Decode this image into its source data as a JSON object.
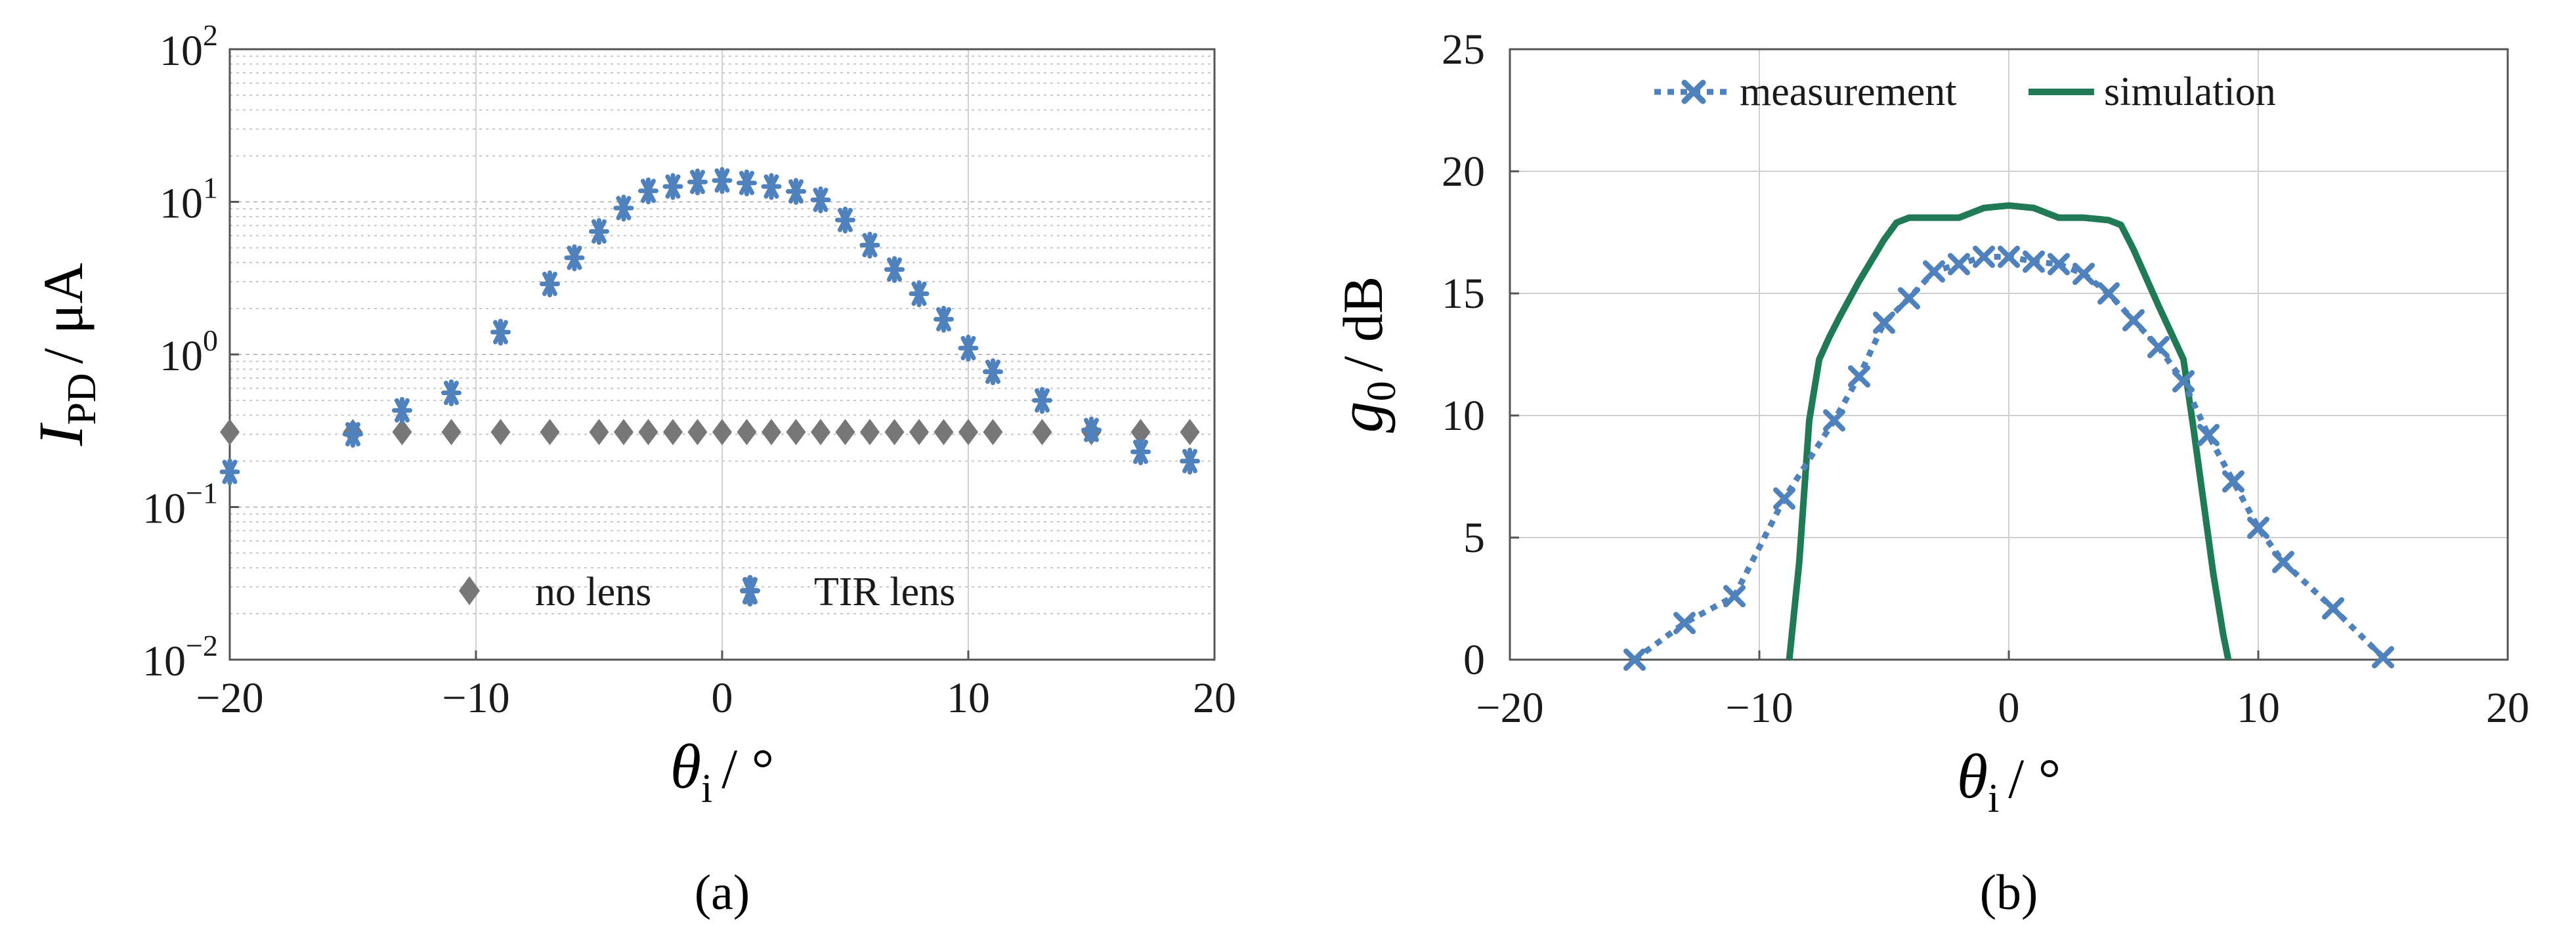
{
  "chart_data": [
    {
      "id": "a",
      "type": "scatter",
      "caption": "(a)",
      "x_label": {
        "symbol": "θ",
        "subscript": "i",
        "unit": "/ °"
      },
      "y_label": {
        "symbol": "I",
        "subscript": "PD",
        "unit": "/ μA"
      },
      "xlim": [
        -20,
        20
      ],
      "xticks": [
        -20,
        -10,
        0,
        10,
        20
      ],
      "ylim": [
        0.01,
        100
      ],
      "yscale": "log",
      "yticks": [
        {
          "value": 0.01,
          "base": "10",
          "exp": "-2"
        },
        {
          "value": 0.1,
          "base": "10",
          "exp": "-1"
        },
        {
          "value": 1,
          "base": "10",
          "exp": "0"
        },
        {
          "value": 10,
          "base": "10",
          "exp": "1"
        },
        {
          "value": 100,
          "base": "10",
          "exp": "2"
        }
      ],
      "grid": true,
      "legend_position": "bottom-center",
      "series": [
        {
          "name": "no lens",
          "marker": "diamond",
          "color": "#777777",
          "x": [
            -20,
            -15,
            -13,
            -11,
            -9,
            -7,
            -5,
            -4,
            -3,
            -2,
            -1,
            0,
            1,
            2,
            3,
            4,
            5,
            6,
            7,
            8,
            9,
            10,
            11,
            13,
            15,
            17,
            19
          ],
          "y": [
            0.31,
            0.31,
            0.31,
            0.31,
            0.31,
            0.31,
            0.31,
            0.31,
            0.31,
            0.31,
            0.31,
            0.31,
            0.31,
            0.31,
            0.31,
            0.31,
            0.31,
            0.31,
            0.31,
            0.31,
            0.31,
            0.31,
            0.31,
            0.31,
            0.31,
            0.31,
            0.31
          ]
        },
        {
          "name": "TIR lens",
          "marker": "star",
          "color": "#4f81bd",
          "x": [
            -20,
            -15,
            -13,
            -11,
            -9,
            -7,
            -6,
            -5,
            -4,
            -3,
            -2,
            -1,
            0,
            1,
            2,
            3,
            4,
            5,
            6,
            7,
            8,
            9,
            10,
            11,
            13,
            15,
            17,
            19
          ],
          "y": [
            0.17,
            0.3,
            0.43,
            0.56,
            1.4,
            2.9,
            4.3,
            6.4,
            9.1,
            11.8,
            12.6,
            13.5,
            13.8,
            13.3,
            12.6,
            11.7,
            10.3,
            7.6,
            5.2,
            3.6,
            2.5,
            1.7,
            1.1,
            0.77,
            0.5,
            0.32,
            0.23,
            0.2
          ]
        }
      ]
    },
    {
      "id": "b",
      "type": "line",
      "caption": "(b)",
      "x_label": {
        "symbol": "θ",
        "subscript": "i",
        "unit": "/ °"
      },
      "y_label": {
        "symbol": "g",
        "subscript": "0",
        "unit": "/ dB"
      },
      "xlim": [
        -20,
        20
      ],
      "xticks": [
        -20,
        -10,
        0,
        10,
        20
      ],
      "ylim": [
        0,
        25
      ],
      "yticks": [
        0,
        5,
        10,
        15,
        20,
        25
      ],
      "grid": true,
      "legend_position": "top-center",
      "series": [
        {
          "name": "measurement",
          "style": "dotted-with-x-markers",
          "color": "#4f81bd",
          "x": [
            -15,
            -13,
            -11,
            -9,
            -7,
            -6,
            -5,
            -4,
            -3,
            -2,
            -1,
            0,
            1,
            2,
            3,
            4,
            5,
            6,
            7,
            8,
            9,
            10,
            11,
            13,
            15
          ],
          "y": [
            0,
            1.5,
            2.6,
            6.6,
            9.8,
            11.6,
            13.8,
            14.8,
            15.9,
            16.2,
            16.5,
            16.5,
            16.3,
            16.2,
            15.8,
            15.0,
            13.9,
            12.8,
            11.4,
            9.2,
            7.3,
            5.4,
            4.0,
            2.1,
            0.1
          ]
        },
        {
          "name": "simulation",
          "style": "solid",
          "color": "#1f7a55",
          "x": [
            -8.8,
            -8.4,
            -8.0,
            -7.6,
            -7.2,
            -6.8,
            -6.0,
            -5.0,
            -4.5,
            -4.0,
            -3.0,
            -2.0,
            -1.0,
            0.0,
            1.0,
            2.0,
            3.0,
            4.0,
            4.5,
            5.0,
            6.0,
            7.0,
            7.4,
            7.8,
            8.2,
            8.6,
            8.8
          ],
          "y": [
            0,
            4.0,
            9.8,
            12.3,
            13.2,
            14.0,
            15.5,
            17.2,
            17.9,
            18.1,
            18.1,
            18.1,
            18.5,
            18.6,
            18.5,
            18.1,
            18.1,
            18.0,
            17.8,
            16.8,
            14.5,
            12.3,
            9.5,
            6.5,
            3.5,
            1.0,
            0
          ]
        }
      ]
    }
  ]
}
